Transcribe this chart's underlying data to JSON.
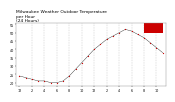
{
  "title": "Milwaukee Weather Outdoor Temperature\nper Hour\n(24 Hours)",
  "bg_color": "#ffffff",
  "plot_bg": "#ffffff",
  "hours": [
    0,
    1,
    2,
    3,
    4,
    5,
    6,
    7,
    8,
    9,
    10,
    11,
    12,
    13,
    14,
    15,
    16,
    17,
    18,
    19,
    20,
    21,
    22,
    23
  ],
  "temps": [
    24,
    23,
    22,
    21,
    21,
    20,
    20,
    21,
    24,
    28,
    32,
    36,
    40,
    43,
    46,
    48,
    50,
    52,
    51,
    49,
    47,
    44,
    41,
    38
  ],
  "ylim": [
    18,
    56
  ],
  "ytick_vals": [
    20,
    25,
    30,
    35,
    40,
    45,
    50,
    55
  ],
  "xtick_hours": [
    0,
    2,
    4,
    6,
    8,
    10,
    12,
    14,
    16,
    18,
    20,
    22
  ],
  "xtick_labels": [
    "12",
    "2",
    "4",
    "6",
    "8",
    "10",
    "12",
    "2",
    "4",
    "6",
    "8",
    "10"
  ],
  "grid_positions": [
    2,
    4,
    6,
    8,
    10,
    12,
    14,
    16,
    18,
    20,
    22
  ],
  "dot_color": "#cc0000",
  "line_color": "#000000",
  "grid_color": "#aaaaaa",
  "highlight_color": "#cc0000",
  "text_color": "#000000",
  "title_fontsize": 3.2,
  "tick_fontsize": 2.4,
  "highlight_hour_start": 20,
  "highlight_temp_min": 50,
  "highlight_temp_max": 56
}
